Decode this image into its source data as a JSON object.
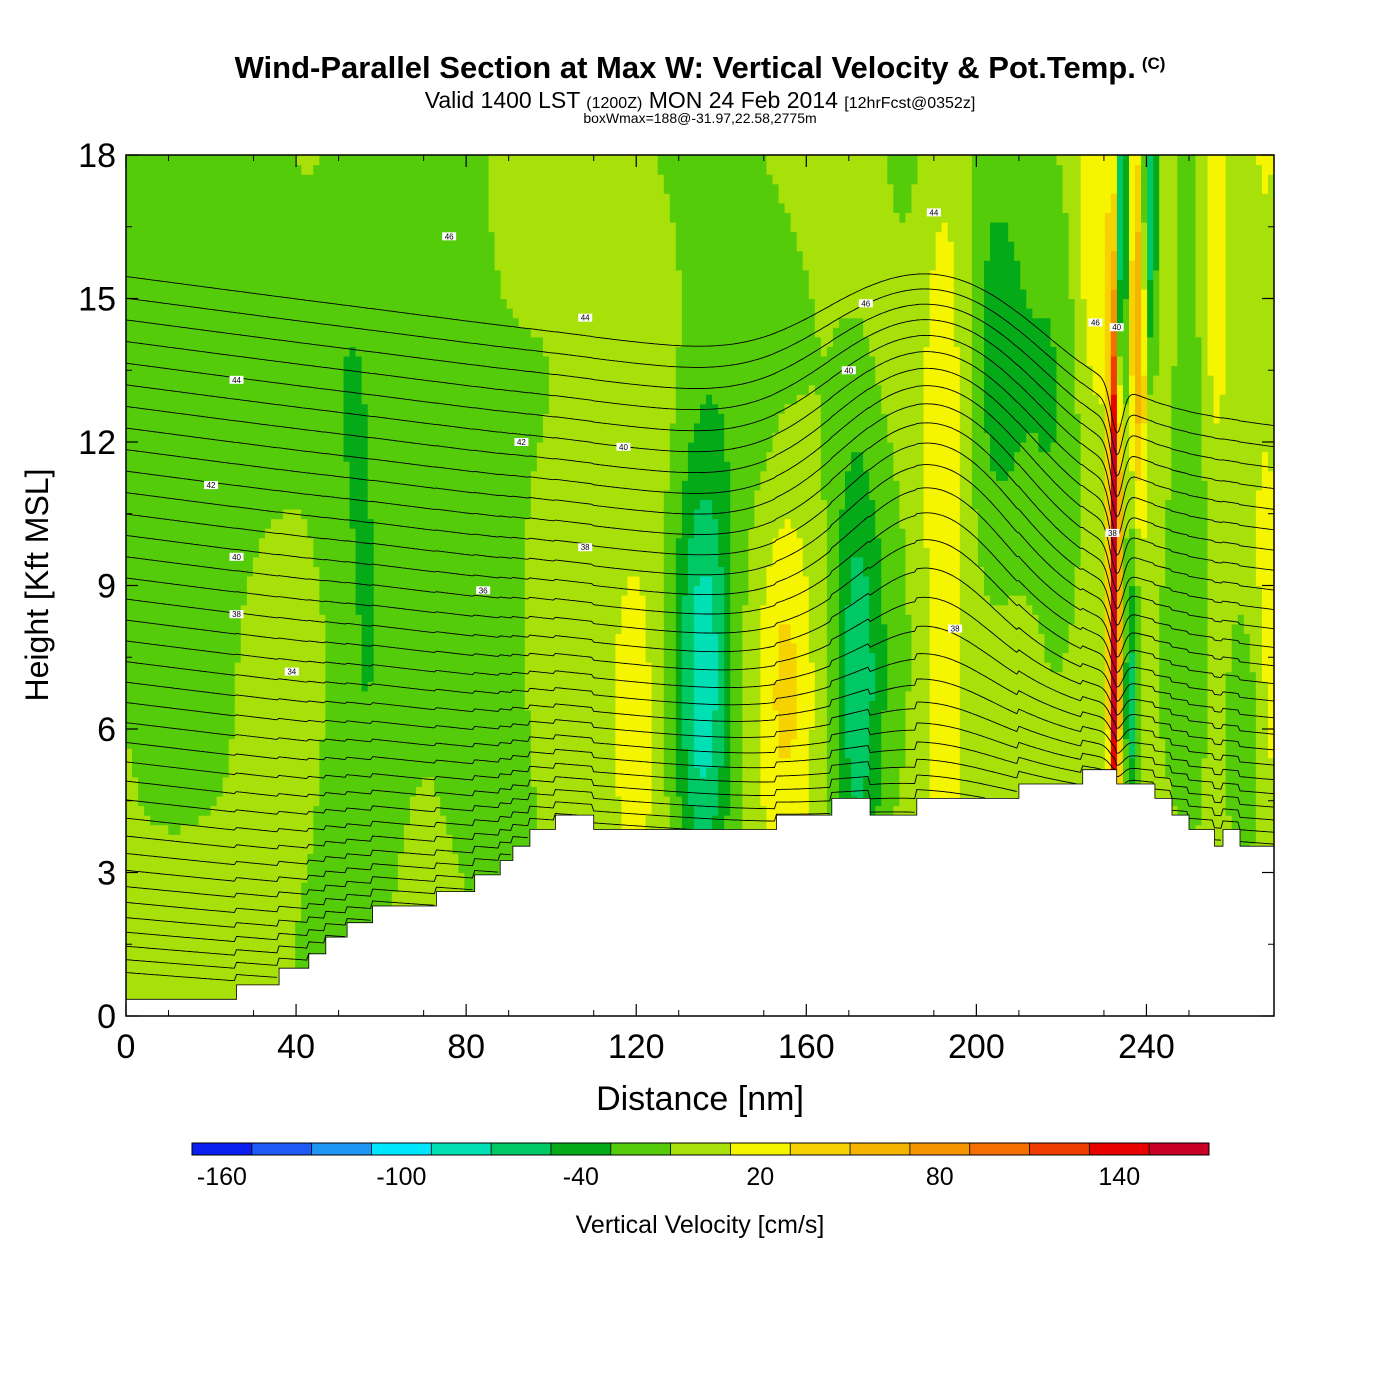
{
  "header": {
    "title": "Wind-Parallel Section at Max W: Vertical Velocity & Pot.Temp.",
    "copyright": "(C)",
    "valid_prefix": "Valid 1400 LST",
    "valid_utc": "(1200Z)",
    "valid_date": "MON 24 Feb 2014",
    "forecast": "[12hrFcst@0352z]",
    "box_wmax": "boxWmax=188@-31.97,22.58,2775m"
  },
  "chart_data": {
    "type": "heatmap",
    "title": "Wind-Parallel Section at Max W: Vertical Velocity & Pot.Temp.",
    "xlabel": "Distance [nm]",
    "ylabel": "Height [Kft MSL]",
    "xlim": [
      0,
      270
    ],
    "ylim": [
      0,
      18
    ],
    "x_ticks": [
      0,
      40,
      80,
      120,
      160,
      200,
      240
    ],
    "y_ticks": [
      0,
      3,
      6,
      9,
      12,
      15,
      18
    ],
    "x_tick_labels": [
      "0",
      "40",
      "80",
      "120",
      "160",
      "200",
      "240"
    ],
    "y_tick_labels": [
      "0",
      "3",
      "6",
      "9",
      "12",
      "15",
      "18"
    ],
    "colorbar": {
      "label": "Vertical Velocity [cm/s]",
      "min": -170,
      "max": 170,
      "step": 20,
      "tick_values": [
        -160,
        -100,
        -40,
        20,
        80,
        140
      ],
      "tick_labels": [
        "-160",
        "-100",
        "-40",
        "20",
        "80",
        "140"
      ],
      "colors": [
        "#0a1ef0",
        "#1e5af5",
        "#1e96f5",
        "#00e6ff",
        "#00e0b4",
        "#00c864",
        "#05aa18",
        "#55cc0a",
        "#a8e00a",
        "#f5f500",
        "#f5d200",
        "#f5b400",
        "#f59600",
        "#f56e00",
        "#f03c00",
        "#e60000",
        "#c80028"
      ]
    },
    "background_w": 0,
    "w_features": [
      {
        "x": 8,
        "z": 12,
        "w": -25,
        "sx": 10,
        "sz": 5
      },
      {
        "x": 40,
        "z": 4.5,
        "w": -5,
        "sx": 22,
        "sz": 2.5
      },
      {
        "x": 28,
        "z": 15.5,
        "w": -25,
        "sx": 10,
        "sz": 4
      },
      {
        "x": 55,
        "z": 10,
        "w": -30,
        "sx": 7,
        "sz": 8
      },
      {
        "x": 75,
        "z": 14,
        "w": -25,
        "sx": 8,
        "sz": 6
      },
      {
        "x": 88,
        "z": 6,
        "w": -20,
        "sx": 10,
        "sz": 4
      },
      {
        "x": 72,
        "z": 7,
        "w": 12,
        "sx": 6,
        "sz": 4
      },
      {
        "x": 120,
        "z": 6.5,
        "w": 28,
        "sx": 4,
        "sz": 2.5
      },
      {
        "x": 136,
        "z": 6.8,
        "w": -75,
        "sx": 4.5,
        "sz": 3.5
      },
      {
        "x": 155,
        "z": 7,
        "w": 30,
        "sx": 4,
        "sz": 3
      },
      {
        "x": 140,
        "z": 15,
        "w": -20,
        "sx": 12,
        "sz": 5
      },
      {
        "x": 172,
        "z": 7,
        "w": -60,
        "sx": 4.5,
        "sz": 4
      },
      {
        "x": 192,
        "z": 10,
        "w": 30,
        "sx": 4,
        "sz": 6
      },
      {
        "x": 185,
        "z": 15,
        "w": -15,
        "sx": 6,
        "sz": 5
      },
      {
        "x": 205,
        "z": 14,
        "w": -35,
        "sx": 5,
        "sz": 4
      },
      {
        "x": 218,
        "z": 12,
        "w": -25,
        "sx": 5,
        "sz": 5
      },
      {
        "x": 228,
        "z": 16.5,
        "w": 30,
        "sx": 3.5,
        "sz": 2.5
      },
      {
        "x": 232.5,
        "z": 9,
        "w": 200,
        "sx": 0.9,
        "sz": 4.5
      },
      {
        "x": 234,
        "z": 16,
        "w": -95,
        "sx": 1.0,
        "sz": 2.5
      },
      {
        "x": 236.5,
        "z": 6.5,
        "w": -50,
        "sx": 1.2,
        "sz": 2.5
      },
      {
        "x": 238.5,
        "z": 15,
        "w": 75,
        "sx": 1.4,
        "sz": 3
      },
      {
        "x": 240.5,
        "z": 16.5,
        "w": -85,
        "sx": 1.4,
        "sz": 2.5
      },
      {
        "x": 250,
        "z": 11,
        "w": -30,
        "sx": 3.5,
        "sz": 5
      },
      {
        "x": 256,
        "z": 15,
        "w": 25,
        "sx": 2.5,
        "sz": 3
      },
      {
        "x": 263,
        "z": 6,
        "w": -35,
        "sx": 3,
        "sz": 2
      },
      {
        "x": 268,
        "z": 12,
        "w": 15,
        "sx": 3,
        "sz": 6
      }
    ],
    "terrain_kft": [
      {
        "x": 0,
        "z": 0.35
      },
      {
        "x": 26,
        "z": 0.35
      },
      {
        "x": 26,
        "z": 0.65
      },
      {
        "x": 36,
        "z": 0.65
      },
      {
        "x": 36,
        "z": 1.0
      },
      {
        "x": 43,
        "z": 1.0
      },
      {
        "x": 43,
        "z": 1.3
      },
      {
        "x": 47,
        "z": 1.3
      },
      {
        "x": 47,
        "z": 1.65
      },
      {
        "x": 52,
        "z": 1.65
      },
      {
        "x": 52,
        "z": 1.95
      },
      {
        "x": 58,
        "z": 1.95
      },
      {
        "x": 58,
        "z": 2.3
      },
      {
        "x": 73,
        "z": 2.3
      },
      {
        "x": 73,
        "z": 2.6
      },
      {
        "x": 82,
        "z": 2.6
      },
      {
        "x": 82,
        "z": 2.95
      },
      {
        "x": 88,
        "z": 2.95
      },
      {
        "x": 88,
        "z": 3.25
      },
      {
        "x": 91,
        "z": 3.25
      },
      {
        "x": 91,
        "z": 3.55
      },
      {
        "x": 95,
        "z": 3.55
      },
      {
        "x": 95,
        "z": 3.9
      },
      {
        "x": 101,
        "z": 3.9
      },
      {
        "x": 101,
        "z": 4.2
      },
      {
        "x": 110,
        "z": 4.2
      },
      {
        "x": 110,
        "z": 3.9
      },
      {
        "x": 153,
        "z": 3.9
      },
      {
        "x": 153,
        "z": 4.2
      },
      {
        "x": 166,
        "z": 4.2
      },
      {
        "x": 166,
        "z": 4.55
      },
      {
        "x": 175,
        "z": 4.55
      },
      {
        "x": 175,
        "z": 4.2
      },
      {
        "x": 186,
        "z": 4.2
      },
      {
        "x": 186,
        "z": 4.55
      },
      {
        "x": 210,
        "z": 4.55
      },
      {
        "x": 210,
        "z": 4.85
      },
      {
        "x": 225,
        "z": 4.85
      },
      {
        "x": 225,
        "z": 5.15
      },
      {
        "x": 233,
        "z": 5.15
      },
      {
        "x": 233,
        "z": 4.85
      },
      {
        "x": 242,
        "z": 4.85
      },
      {
        "x": 242,
        "z": 4.55
      },
      {
        "x": 246,
        "z": 4.55
      },
      {
        "x": 246,
        "z": 4.2
      },
      {
        "x": 250,
        "z": 4.2
      },
      {
        "x": 250,
        "z": 3.9
      },
      {
        "x": 256,
        "z": 3.9
      },
      {
        "x": 256,
        "z": 3.55
      },
      {
        "x": 258,
        "z": 3.55
      },
      {
        "x": 258,
        "z": 3.9
      },
      {
        "x": 262,
        "z": 3.9
      },
      {
        "x": 262,
        "z": 3.55
      },
      {
        "x": 270,
        "z": 3.55
      }
    ],
    "theta_contours": {
      "min": 30,
      "max": 48,
      "interval": 0.5,
      "label_interval": 2,
      "labels": [
        {
          "x": 39,
          "z": 7.2,
          "value": "34"
        },
        {
          "x": 26,
          "z": 8.4,
          "value": "38"
        },
        {
          "x": 26,
          "z": 9.6,
          "value": "40"
        },
        {
          "x": 20,
          "z": 11.1,
          "value": "42"
        },
        {
          "x": 26,
          "z": 13.3,
          "value": "44"
        },
        {
          "x": 84,
          "z": 8.9,
          "value": "36"
        },
        {
          "x": 108,
          "z": 9.8,
          "value": "38"
        },
        {
          "x": 117,
          "z": 11.9,
          "value": "40"
        },
        {
          "x": 93,
          "z": 12.0,
          "value": "42"
        },
        {
          "x": 108,
          "z": 14.6,
          "value": "44"
        },
        {
          "x": 76,
          "z": 16.3,
          "value": "46"
        },
        {
          "x": 170,
          "z": 13.5,
          "value": "40"
        },
        {
          "x": 174,
          "z": 14.9,
          "value": "46"
        },
        {
          "x": 190,
          "z": 16.8,
          "value": "44"
        },
        {
          "x": 195,
          "z": 8.1,
          "value": "38"
        },
        {
          "x": 232,
          "z": 10.1,
          "value": "38"
        },
        {
          "x": 228,
          "z": 14.5,
          "value": "46"
        },
        {
          "x": 233,
          "z": 14.4,
          "value": "40"
        }
      ]
    }
  }
}
